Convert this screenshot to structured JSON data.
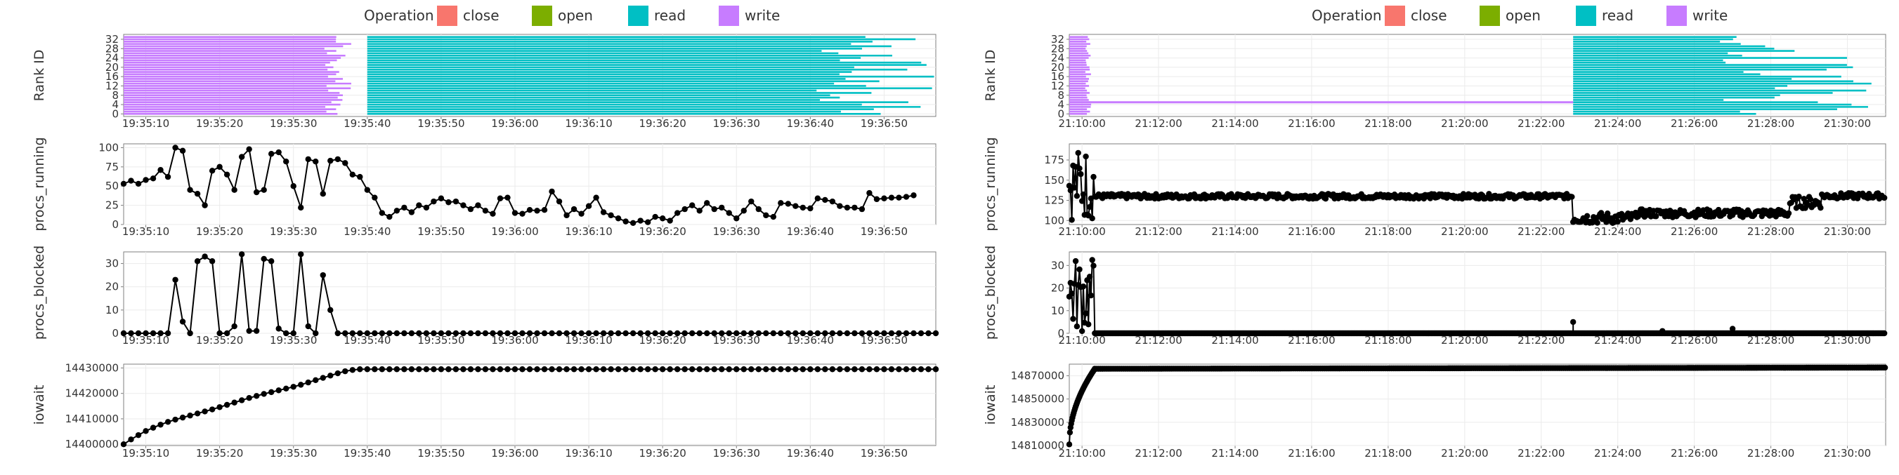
{
  "legend": {
    "title": "Operation",
    "items": [
      {
        "label": "close",
        "color": "#F8766D"
      },
      {
        "label": "open",
        "color": "#7CAE00"
      },
      {
        "label": "read",
        "color": "#00BFC4"
      },
      {
        "label": "write",
        "color": "#C77CFF"
      }
    ]
  },
  "chart_data": [
    {
      "type": "figure",
      "panel": "left",
      "x_tick_labels": [
        "19:35:10",
        "19:35:20",
        "19:35:30",
        "19:35:40",
        "19:35:50",
        "19:36:00",
        "19:36:10",
        "19:36:20",
        "19:36:30",
        "19:36:40",
        "19:36:50"
      ],
      "xlim": [
        "19:35:07",
        "19:36:57"
      ],
      "subplots": [
        {
          "type": "timeline",
          "ylabel": "Rank ID",
          "y_tick_labels": [
            "0",
            "4",
            "8",
            "12",
            "16",
            "20",
            "24",
            "28",
            "32"
          ],
          "ylim": [
            0,
            33
          ],
          "write_block": {
            "start": "19:35:07",
            "end_min": "19:35:34",
            "end_max": "19:35:38"
          },
          "read_block": {
            "start": "19:35:40",
            "end_min": "19:36:40",
            "end_max": "19:36:57"
          }
        },
        {
          "type": "line",
          "ylabel": "procs_running",
          "y_tick_labels": [
            "0",
            "25",
            "50",
            "75",
            "100"
          ],
          "ylim": [
            0,
            105
          ],
          "x_start": "19:35:07",
          "step_seconds": 1,
          "values": [
            53,
            57,
            53,
            58,
            60,
            71,
            62,
            100,
            96,
            45,
            40,
            25,
            70,
            75,
            65,
            45,
            88,
            98,
            42,
            45,
            92,
            94,
            82,
            50,
            22,
            85,
            82,
            40,
            83,
            85,
            80,
            65,
            62,
            45,
            35,
            15,
            10,
            18,
            22,
            16,
            25,
            22,
            30,
            34,
            29,
            30,
            25,
            20,
            25,
            18,
            14,
            34,
            35,
            15,
            14,
            19,
            18,
            19,
            43,
            30,
            12,
            20,
            14,
            24,
            35,
            16,
            12,
            8,
            4,
            2,
            5,
            3,
            10,
            8,
            5,
            15,
            20,
            25,
            18,
            28,
            20,
            22,
            15,
            8,
            18,
            30,
            20,
            12,
            10,
            28,
            27,
            24,
            22,
            21,
            34,
            32,
            30,
            24,
            22,
            22,
            20,
            41,
            33,
            34,
            35,
            35,
            36,
            38
          ]
        },
        {
          "type": "line",
          "ylabel": "procs_blocked",
          "y_tick_labels": [
            "0",
            "10",
            "20",
            "30"
          ],
          "ylim": [
            0,
            35
          ],
          "x_start": "19:35:07",
          "step_seconds": 1,
          "active_values": [
            0,
            0,
            0,
            0,
            0,
            0,
            0,
            23,
            5,
            0,
            31,
            33,
            31,
            0,
            0,
            3,
            34,
            1,
            1,
            32,
            31,
            2,
            0,
            0,
            34,
            3,
            0,
            25,
            10,
            0
          ],
          "baseline_until": "19:36:57"
        },
        {
          "type": "line",
          "ylabel": "iowait",
          "y_tick_labels": [
            "14400000",
            "14410000",
            "14420000",
            "14430000"
          ],
          "ylim": [
            14399500,
            14431500
          ],
          "x_start": "19:35:07",
          "step_seconds": 1,
          "rise_values": [
            14400000,
            14401900,
            14403600,
            14405200,
            14406500,
            14407700,
            14408800,
            14409700,
            14410500,
            14411300,
            14412100,
            14412900,
            14413700,
            14414600,
            14415500,
            14416400,
            14417300,
            14418200,
            14419000,
            14419800,
            14420500,
            14421200,
            14421900,
            14422600,
            14423400,
            14424300,
            14425200,
            14426100,
            14427000,
            14427900,
            14428700,
            14429200
          ],
          "plateau_value": 14429500,
          "plateau_until": "19:36:57"
        }
      ]
    },
    {
      "type": "figure",
      "panel": "right",
      "x_tick_labels": [
        "21:10:00",
        "21:12:00",
        "21:14:00",
        "21:16:00",
        "21:18:00",
        "21:20:00",
        "21:22:00",
        "21:24:00",
        "21:26:00",
        "21:28:00",
        "21:30:00"
      ],
      "xlim": [
        "21:09:40",
        "21:31:00"
      ],
      "subplots": [
        {
          "type": "timeline",
          "ylabel": "Rank ID",
          "y_tick_labels": [
            "0",
            "4",
            "8",
            "12",
            "16",
            "20",
            "24",
            "28",
            "32"
          ],
          "ylim": [
            0,
            33
          ],
          "write_block": {
            "start": "21:09:40",
            "end_min": "21:10:05",
            "end_max": "21:10:15"
          },
          "write_line_rank": 5,
          "write_line_end": "21:22:50",
          "read_block": {
            "start": "21:22:50",
            "end_min": "21:26:40",
            "end_max": "21:30:40"
          }
        },
        {
          "type": "line",
          "ylabel": "procs_running",
          "y_tick_labels": [
            "100",
            "125",
            "150",
            "175"
          ],
          "ylim": [
            95,
            195
          ],
          "noise_segments": [
            {
              "start": "21:09:40",
              "end": "21:10:20",
              "low": 100,
              "high": 190
            },
            {
              "start": "21:10:20",
              "end": "21:22:50",
              "low": 127,
              "high": 133
            },
            {
              "start": "21:22:50",
              "end": "21:24:30",
              "low": 96,
              "high": 110
            },
            {
              "start": "21:24:30",
              "end": "21:28:30",
              "low": 104,
              "high": 114
            },
            {
              "start": "21:28:30",
              "end": "21:29:20",
              "low": 115,
              "high": 130
            },
            {
              "start": "21:29:20",
              "end": "21:31:00",
              "low": 127,
              "high": 134
            }
          ]
        },
        {
          "type": "line",
          "ylabel": "procs_blocked",
          "y_tick_labels": [
            "0",
            "10",
            "20",
            "30"
          ],
          "ylim": [
            0,
            36
          ],
          "noise_segments": [
            {
              "start": "21:09:40",
              "end": "21:10:20",
              "low": 0,
              "high": 34
            },
            {
              "start": "21:10:20",
              "end": "21:31:00",
              "low": 0,
              "high": 0
            }
          ],
          "spikes": [
            {
              "x": "21:22:50",
              "value": 5
            },
            {
              "x": "21:27:00",
              "value": 2
            },
            {
              "x": "21:25:10",
              "value": 1
            }
          ]
        },
        {
          "type": "line",
          "ylabel": "iowait",
          "y_tick_labels": [
            "14810000",
            "14830000",
            "14850000",
            "14870000"
          ],
          "ylim": [
            14810000,
            14880000
          ],
          "rise": {
            "start": "21:09:40",
            "end": "21:10:20",
            "from": 14811000,
            "to": 14876000
          },
          "plateau": {
            "start": "21:10:20",
            "end": "21:31:00",
            "from": 14876000,
            "to": 14877000
          }
        }
      ]
    }
  ]
}
